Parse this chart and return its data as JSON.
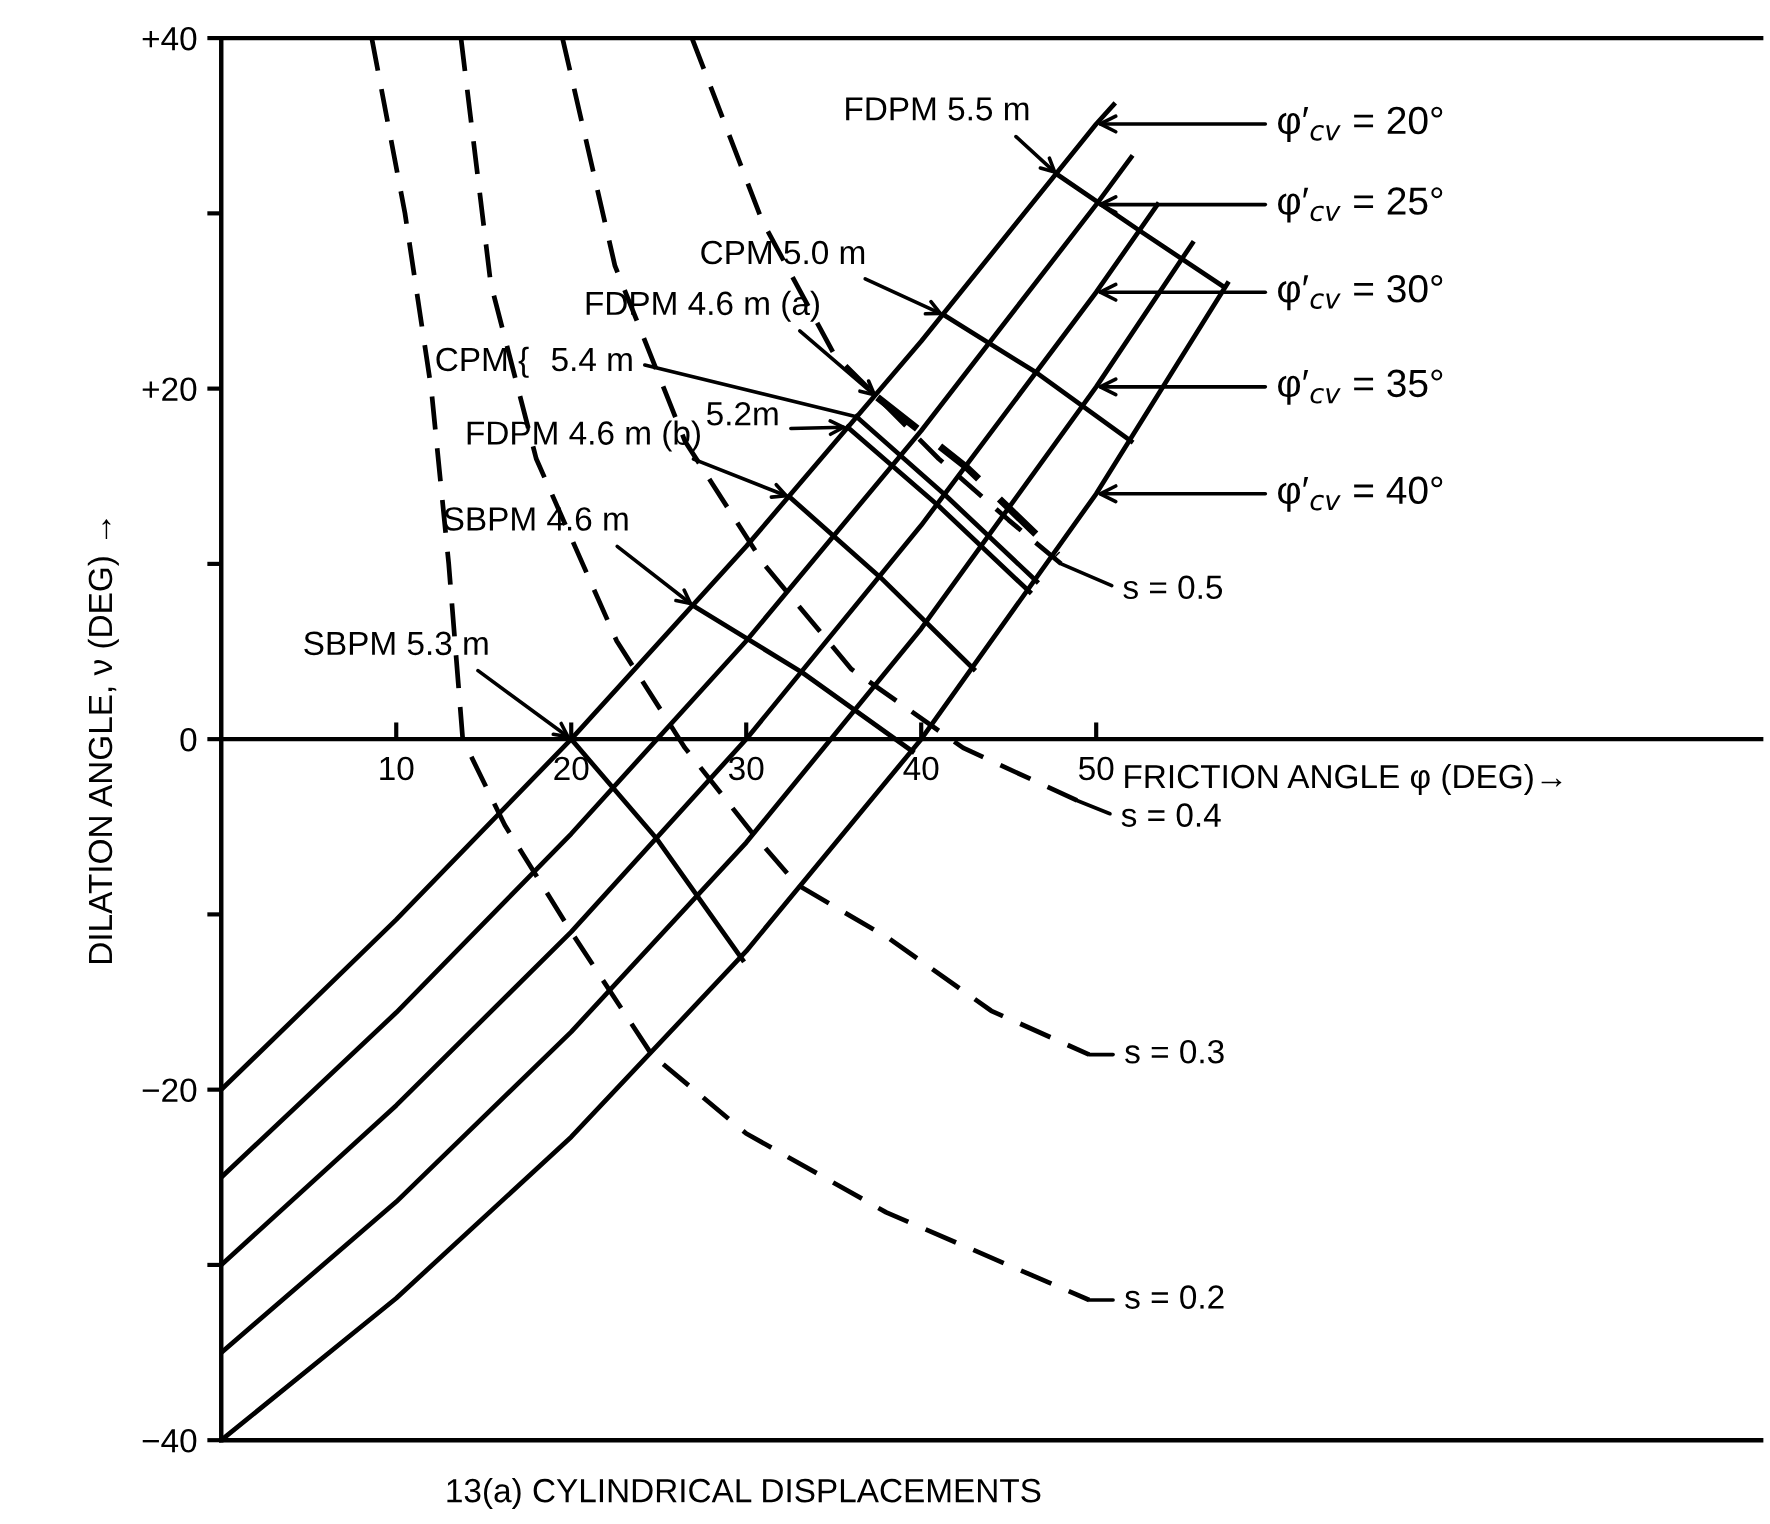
{
  "chart_data": {
    "type": "line",
    "xlabel": "FRICTION ANGLE φ (DEG)→",
    "ylabel": "DILATION ANGLE, ν (DEG) →",
    "xlim": [
      0,
      88
    ],
    "ylim": [
      -40,
      40
    ],
    "legend": "right",
    "xticks": [
      10,
      20,
      30,
      40,
      50
    ],
    "yticks": [
      {
        "value": -40,
        "label": "−40"
      },
      {
        "value": -30,
        "label": null
      },
      {
        "value": -20,
        "label": "−20"
      },
      {
        "value": -10,
        "label": null
      },
      0,
      {
        "value": 10,
        "label": null
      },
      {
        "value": 20,
        "label": "+20"
      },
      {
        "value": 30,
        "label": null
      },
      {
        "value": 40,
        "label": "+40"
      }
    ],
    "series": [
      {
        "name": "φ′$_{cv}$ = 20°",
        "color": "#000000",
        "x": [
          0,
          10,
          20,
          30,
          40,
          50,
          51
        ],
        "values": [
          -20,
          -10.3,
          0,
          11.0,
          22.7,
          35.1,
          36.2
        ]
      },
      {
        "name": "φ′$_{cv}$ = 25°",
        "color": "#000000",
        "x": [
          0,
          10,
          20,
          30,
          40,
          50,
          52
        ],
        "values": [
          -25,
          -15.6,
          -5.4,
          5.6,
          17.6,
          30.5,
          33.2
        ]
      },
      {
        "name": "φ′$_{cv}$ = 30°",
        "color": "#000000",
        "x": [
          0,
          10,
          20,
          30,
          40,
          50,
          53.5
        ],
        "values": [
          -30,
          -20.9,
          -11.0,
          0,
          12.2,
          25.5,
          30.5
        ]
      },
      {
        "name": "φ′$_{cv}$ = 35°",
        "color": "#000000",
        "x": [
          0,
          10,
          20,
          30,
          40,
          50,
          55.5
        ],
        "values": [
          -35,
          -26.4,
          -16.7,
          -5.9,
          6.3,
          20.1,
          28.3
        ]
      },
      {
        "name": "φ′$_{cv}$ = 40°",
        "color": "#000000",
        "x": [
          0,
          10,
          20,
          30,
          40,
          50,
          57.5
        ],
        "values": [
          -40,
          -31.9,
          -22.7,
          -12.1,
          0,
          14.0,
          26.0
        ]
      },
      {
        "color": "#000000",
        "line_style": "dashed",
        "x": [
          26.9,
          30.9,
          35,
          41,
          45,
          48
        ],
        "values": [
          40,
          29.6,
          22,
          16,
          12.5,
          10
        ]
      },
      {
        "color": "#000000",
        "line_style": "dashed",
        "x": [
          19.5,
          22.5,
          26.5,
          31,
          36,
          42.4,
          48.9
        ],
        "values": [
          40,
          27,
          17,
          10,
          4,
          -0.5,
          -3.5
        ]
      },
      {
        "color": "#000000",
        "line_style": "dashed",
        "x": [
          13.7,
          15.4,
          18,
          22.6,
          26.5,
          30.3,
          32.9,
          38.2,
          44,
          49.6
        ],
        "values": [
          40,
          26,
          16,
          5.6,
          -0.5,
          -5.3,
          -8.3,
          -11.4,
          -15.5,
          -18
        ]
      },
      {
        "color": "#000000",
        "line_style": "dashed",
        "x": [
          8.6,
          10.5,
          12,
          13,
          13.8,
          16.2,
          20,
          24.6,
          30,
          38,
          49.6
        ],
        "values": [
          40,
          30,
          20,
          10,
          0,
          -4.9,
          -11,
          -18,
          -22.5,
          -27,
          -32
        ]
      },
      {
        "color": "#000000",
        "x": [
          47.8,
          52.5,
          57.3
        ],
        "values": [
          32.2,
          29.0,
          25.8
        ]
      },
      {
        "color": "#000000",
        "x": [
          41.3,
          46.6,
          52
        ],
        "values": [
          24.2,
          20.9,
          17.0
        ]
      },
      {
        "color": "#000000",
        "line_style": "dashed",
        "x": [
          37.5,
          42.6,
          47.8
        ],
        "values": [
          19.5,
          15.5,
          10.5
        ]
      },
      {
        "color": "#000000",
        "x": [
          36.3,
          41.4,
          46.6
        ],
        "values": [
          18.4,
          13.9,
          9.0
        ]
      },
      {
        "color": "#000000",
        "x": [
          35.8,
          41.0,
          46.2
        ],
        "values": [
          17.8,
          13.3,
          8.4
        ]
      },
      {
        "color": "#000000",
        "x": [
          32.5,
          37.7,
          43
        ],
        "values": [
          13.8,
          9.2,
          4.0
        ]
      },
      {
        "color": "#000000",
        "x": [
          27,
          33.2,
          39.5
        ],
        "values": [
          7.6,
          3.8,
          -0.7
        ]
      },
      {
        "color": "#000000",
        "x": [
          20,
          24.9,
          29.8
        ],
        "values": [
          0,
          -5.7,
          -12.6
        ]
      }
    ],
    "annotations": [
      {
        "text": "FDPM 5.5 m",
        "x": 47.8,
        "y": 32.2
      },
      {
        "text": "CPM 5.0 m",
        "x": 41.3,
        "y": 24.2
      },
      {
        "text": "FDPM 4.6 m (a)",
        "x": 37.5,
        "y": 19.5
      },
      "CPM {",
      {
        "text": "5.4 m",
        "x": 36.3,
        "y": 18.4
      },
      {
        "text": "5.2m",
        "x": 35.8,
        "y": 17.8
      },
      {
        "text": "FDPM 4.6 m (b)",
        "x": 32.5,
        "y": 13.8
      },
      {
        "text": "SBPM 4.6 m",
        "x": 27,
        "y": 7.6
      },
      {
        "text": "SBPM 5.3 m",
        "x": 20,
        "y": 0
      },
      {
        "text": "s = 0.5",
        "x": 48,
        "y": 10
      },
      {
        "text": "s = 0.4",
        "x": 48.9,
        "y": -3.5
      },
      {
        "text": "s = 0.3",
        "x": 49.6,
        "y": -18
      },
      {
        "text": "s = 0.2",
        "x": 49.6,
        "y": -32
      },
      "13(a) CYLINDRICAL DISPLACEMENTS"
    ]
  }
}
